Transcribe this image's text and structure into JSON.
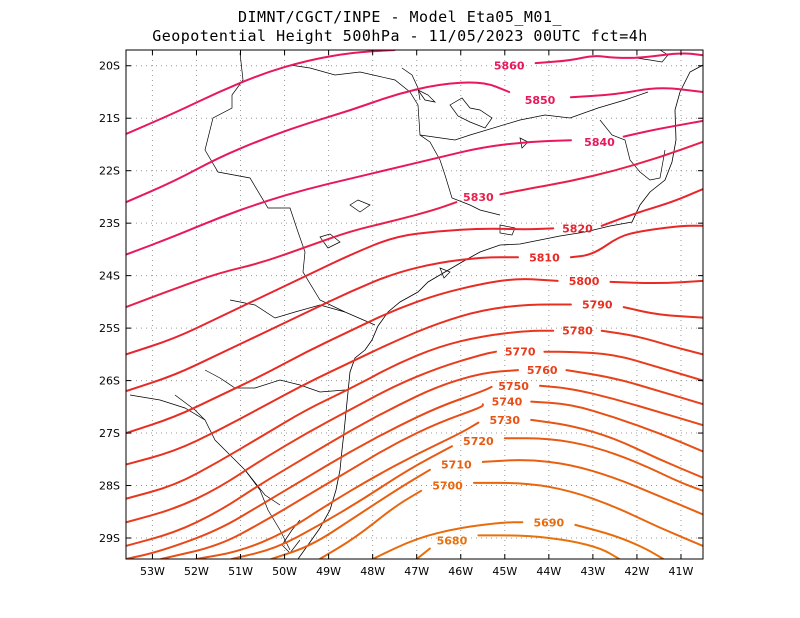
{
  "title": {
    "line1": "DIMNT/CGCT/INPE -  Model Eta05_M01_",
    "line2": "Geopotential Height 500hPa -  11/05/2023 00UTC fct=4h"
  },
  "map": {
    "lon_range": [
      -53.6,
      -40.5
    ],
    "lat_range": [
      -29.4,
      -19.7
    ],
    "x_tick_labels": [
      {
        "lon": -53,
        "label": "53W"
      },
      {
        "lon": -52,
        "label": "52W"
      },
      {
        "lon": -51,
        "label": "51W"
      },
      {
        "lon": -50,
        "label": "50W"
      },
      {
        "lon": -49,
        "label": "49W"
      },
      {
        "lon": -48,
        "label": "48W"
      },
      {
        "lon": -47,
        "label": "47W"
      },
      {
        "lon": -46,
        "label": "46W"
      },
      {
        "lon": -45,
        "label": "45W"
      },
      {
        "lon": -44,
        "label": "44W"
      },
      {
        "lon": -43,
        "label": "43W"
      },
      {
        "lon": -42,
        "label": "42W"
      },
      {
        "lon": -41,
        "label": "41W"
      }
    ],
    "y_tick_labels": [
      {
        "lat": -20,
        "label": "20S"
      },
      {
        "lat": -21,
        "label": "21S"
      },
      {
        "lat": -22,
        "label": "22S"
      },
      {
        "lat": -23,
        "label": "23S"
      },
      {
        "lat": -24,
        "label": "24S"
      },
      {
        "lat": -25,
        "label": "25S"
      },
      {
        "lat": -26,
        "label": "26S"
      },
      {
        "lat": -27,
        "label": "27S"
      },
      {
        "lat": -28,
        "label": "28S"
      },
      {
        "lat": -29,
        "label": "29S"
      }
    ],
    "grid": "dotted"
  },
  "contours": [
    {
      "value": 5860,
      "label": "5860",
      "color": "#e8185a",
      "label_lon": -44.9,
      "label_lat": -20.0,
      "path": [
        [
          -53.6,
          -21.3
        ],
        [
          -52.5,
          -20.9
        ],
        [
          -51.5,
          -20.5
        ],
        [
          -50.5,
          -20.15
        ],
        [
          -49.5,
          -19.9
        ],
        [
          -48.5,
          -19.75
        ],
        [
          -47.5,
          -19.7
        ]
      ],
      "path2": [
        [
          -44.3,
          -19.95
        ],
        [
          -43.5,
          -19.9
        ],
        [
          -43.0,
          -19.8
        ],
        [
          -42.5,
          -19.85
        ],
        [
          -41.9,
          -19.85
        ],
        [
          -41.0,
          -19.75
        ],
        [
          -40.5,
          -19.8
        ]
      ]
    },
    {
      "value": 5850,
      "label": "5850",
      "color": "#e8185a",
      "label_lon": -44.2,
      "label_lat": -20.65,
      "path": [
        [
          -53.6,
          -22.6
        ],
        [
          -52.5,
          -22.2
        ],
        [
          -51.5,
          -21.75
        ],
        [
          -50.5,
          -21.4
        ],
        [
          -49.5,
          -21.1
        ],
        [
          -48.5,
          -20.85
        ],
        [
          -47.5,
          -20.55
        ],
        [
          -46.5,
          -20.35
        ],
        [
          -45.5,
          -20.3
        ],
        [
          -44.9,
          -20.5
        ]
      ],
      "path2": [
        [
          -43.5,
          -20.6
        ],
        [
          -42.5,
          -20.55
        ],
        [
          -41.5,
          -20.4
        ],
        [
          -40.5,
          -20.5
        ]
      ]
    },
    {
      "value": 5840,
      "label": "5840",
      "color": "#e8185a",
      "label_lon": -42.85,
      "label_lat": -21.45,
      "path": [
        [
          -53.6,
          -23.6
        ],
        [
          -52.5,
          -23.25
        ],
        [
          -51.5,
          -22.9
        ],
        [
          -50.5,
          -22.6
        ],
        [
          -49.5,
          -22.35
        ],
        [
          -48.5,
          -22.15
        ],
        [
          -47.5,
          -21.95
        ],
        [
          -46.5,
          -21.75
        ],
        [
          -45.5,
          -21.55
        ],
        [
          -44.5,
          -21.45
        ],
        [
          -43.5,
          -21.42
        ]
      ],
      "path2": [
        [
          -42.3,
          -21.35
        ],
        [
          -41.5,
          -21.2
        ],
        [
          -40.5,
          -21.05
        ]
      ]
    },
    {
      "value": 5830,
      "label": "5830",
      "color": "#e81f4a",
      "label_lon": -45.6,
      "label_lat": -22.5,
      "path": [
        [
          -53.6,
          -24.6
        ],
        [
          -52.5,
          -24.25
        ],
        [
          -51.5,
          -23.95
        ],
        [
          -50.5,
          -23.75
        ],
        [
          -49.5,
          -23.45
        ],
        [
          -48.5,
          -23.15
        ],
        [
          -47.5,
          -22.95
        ],
        [
          -46.6,
          -22.75
        ],
        [
          -46.1,
          -22.6
        ]
      ],
      "path2": [
        [
          -45.1,
          -22.45
        ],
        [
          -44.5,
          -22.35
        ],
        [
          -43.5,
          -22.2
        ],
        [
          -42.5,
          -22.0
        ],
        [
          -41.5,
          -21.75
        ],
        [
          -40.5,
          -21.45
        ]
      ]
    },
    {
      "value": 5820,
      "label": "5820",
      "color": "#e8242f",
      "label_lon": -43.35,
      "label_lat": -23.1,
      "path": [
        [
          -53.6,
          -25.5
        ],
        [
          -52.5,
          -25.2
        ],
        [
          -51.5,
          -24.8
        ],
        [
          -50.5,
          -24.4
        ],
        [
          -49.5,
          -24.0
        ],
        [
          -48.5,
          -23.6
        ],
        [
          -47.5,
          -23.25
        ],
        [
          -46.5,
          -23.15
        ],
        [
          -45.5,
          -23.1
        ],
        [
          -44.5,
          -23.12
        ],
        [
          -43.9,
          -23.1
        ]
      ],
      "path2": [
        [
          -42.8,
          -23.05
        ],
        [
          -42.0,
          -22.8
        ],
        [
          -41.2,
          -22.6
        ],
        [
          -40.5,
          -22.35
        ]
      ]
    },
    {
      "value": 5810,
      "label": "5810",
      "color": "#e82828",
      "label_lon": -44.1,
      "label_lat": -23.65,
      "path": [
        [
          -53.6,
          -26.2
        ],
        [
          -52.5,
          -25.9
        ],
        [
          -51.5,
          -25.5
        ],
        [
          -50.5,
          -25.1
        ],
        [
          -49.5,
          -24.7
        ],
        [
          -48.5,
          -24.3
        ],
        [
          -47.5,
          -23.95
        ],
        [
          -46.5,
          -23.75
        ],
        [
          -45.5,
          -23.65
        ],
        [
          -44.7,
          -23.65
        ]
      ],
      "path2": [
        [
          -43.5,
          -23.65
        ],
        [
          -43.0,
          -23.6
        ],
        [
          -42.4,
          -23.25
        ],
        [
          -41.9,
          -23.15
        ],
        [
          -41.0,
          -23.05
        ],
        [
          -40.5,
          -23.05
        ]
      ]
    },
    {
      "value": 5800,
      "label": "5800",
      "color": "#e82c22",
      "label_lon": -43.2,
      "label_lat": -24.1,
      "path": [
        [
          -53.6,
          -27.0
        ],
        [
          -52.5,
          -26.7
        ],
        [
          -51.5,
          -26.3
        ],
        [
          -50.5,
          -25.9
        ],
        [
          -49.5,
          -25.45
        ],
        [
          -48.5,
          -25.05
        ],
        [
          -47.5,
          -24.65
        ],
        [
          -46.5,
          -24.35
        ],
        [
          -45.5,
          -24.15
        ],
        [
          -44.7,
          -24.05
        ],
        [
          -43.8,
          -24.1
        ]
      ],
      "path2": [
        [
          -42.6,
          -24.12
        ],
        [
          -41.5,
          -24.15
        ],
        [
          -40.5,
          -24.1
        ]
      ]
    },
    {
      "value": 5790,
      "label": "5790",
      "color": "#e83020",
      "label_lon": -42.9,
      "label_lat": -24.55,
      "path": [
        [
          -53.6,
          -27.6
        ],
        [
          -52.5,
          -27.35
        ],
        [
          -51.5,
          -26.95
        ],
        [
          -50.5,
          -26.5
        ],
        [
          -49.5,
          -26.05
        ],
        [
          -48.5,
          -25.65
        ],
        [
          -47.5,
          -25.25
        ],
        [
          -46.5,
          -24.9
        ],
        [
          -45.5,
          -24.65
        ],
        [
          -44.5,
          -24.55
        ],
        [
          -43.5,
          -24.55
        ]
      ],
      "path2": [
        [
          -42.3,
          -24.6
        ],
        [
          -41.5,
          -24.75
        ],
        [
          -40.5,
          -24.8
        ]
      ]
    },
    {
      "value": 5780,
      "label": "5780",
      "color": "#e8361e",
      "label_lon": -43.35,
      "label_lat": -25.05,
      "path": [
        [
          -53.6,
          -28.25
        ],
        [
          -52.5,
          -28.0
        ],
        [
          -51.5,
          -27.55
        ],
        [
          -50.5,
          -27.05
        ],
        [
          -49.5,
          -26.55
        ],
        [
          -48.5,
          -26.15
        ],
        [
          -47.5,
          -25.7
        ],
        [
          -46.5,
          -25.35
        ],
        [
          -45.5,
          -25.15
        ],
        [
          -44.5,
          -25.05
        ],
        [
          -43.9,
          -25.05
        ]
      ],
      "path2": [
        [
          -42.8,
          -25.05
        ],
        [
          -42.0,
          -25.15
        ],
        [
          -41.2,
          -25.35
        ],
        [
          -40.5,
          -25.5
        ]
      ]
    },
    {
      "value": 5770,
      "label": "5770",
      "color": "#e83c1c",
      "label_lon": -44.65,
      "label_lat": -25.45,
      "path": [
        [
          -53.6,
          -28.7
        ],
        [
          -52.5,
          -28.45
        ],
        [
          -51.5,
          -28.05
        ],
        [
          -50.5,
          -27.5
        ],
        [
          -49.5,
          -27.0
        ],
        [
          -48.5,
          -26.55
        ],
        [
          -47.5,
          -26.1
        ],
        [
          -46.5,
          -25.75
        ],
        [
          -45.5,
          -25.5
        ],
        [
          -45.2,
          -25.45
        ]
      ],
      "path2": [
        [
          -44.1,
          -25.45
        ],
        [
          -43.5,
          -25.45
        ],
        [
          -42.5,
          -25.5
        ],
        [
          -41.5,
          -25.75
        ],
        [
          -40.5,
          -26.0
        ]
      ]
    },
    {
      "value": 5760,
      "label": "5760",
      "color": "#e8421a",
      "label_lon": -44.15,
      "label_lat": -25.8,
      "path": [
        [
          -53.6,
          -29.15
        ],
        [
          -52.5,
          -28.9
        ],
        [
          -51.5,
          -28.5
        ],
        [
          -50.5,
          -27.95
        ],
        [
          -49.5,
          -27.45
        ],
        [
          -48.5,
          -26.95
        ],
        [
          -47.5,
          -26.5
        ],
        [
          -46.5,
          -26.1
        ],
        [
          -45.5,
          -25.85
        ],
        [
          -44.7,
          -25.8
        ]
      ],
      "path2": [
        [
          -43.6,
          -25.8
        ],
        [
          -42.5,
          -25.95
        ],
        [
          -41.5,
          -26.2
        ],
        [
          -40.5,
          -26.45
        ]
      ]
    },
    {
      "value": 5750,
      "label": "5750",
      "color": "#e84818",
      "label_lon": -44.8,
      "label_lat": -26.1,
      "path": [
        [
          -53.6,
          -29.4
        ],
        [
          -52.8,
          -29.25
        ],
        [
          -51.5,
          -28.85
        ],
        [
          -50.5,
          -28.35
        ],
        [
          -49.5,
          -27.85
        ],
        [
          -48.5,
          -27.35
        ],
        [
          -47.5,
          -26.9
        ],
        [
          -46.5,
          -26.5
        ],
        [
          -45.5,
          -26.2
        ],
        [
          -45.3,
          -26.12
        ]
      ],
      "path2": [
        [
          -44.2,
          -26.1
        ],
        [
          -43.5,
          -26.15
        ],
        [
          -42.5,
          -26.35
        ],
        [
          -41.5,
          -26.6
        ],
        [
          -40.5,
          -26.85
        ]
      ]
    },
    {
      "value": 5740,
      "label": "5740",
      "color": "#e84e16",
      "label_lon": -44.95,
      "label_lat": -26.4,
      "path": [
        [
          -52.8,
          -29.4
        ],
        [
          -51.5,
          -29.15
        ],
        [
          -50.5,
          -28.7
        ],
        [
          -49.5,
          -28.2
        ],
        [
          -48.5,
          -27.7
        ],
        [
          -47.5,
          -27.2
        ],
        [
          -46.5,
          -26.8
        ],
        [
          -45.5,
          -26.5
        ],
        [
          -45.5,
          -26.45
        ]
      ],
      "path2": [
        [
          -44.4,
          -26.4
        ],
        [
          -43.5,
          -26.45
        ],
        [
          -42.5,
          -26.7
        ],
        [
          -41.5,
          -27.0
        ],
        [
          -40.5,
          -27.35
        ]
      ]
    },
    {
      "value": 5730,
      "label": "5730",
      "color": "#e85414",
      "label_lon": -45.0,
      "label_lat": -26.75,
      "path": [
        [
          -52.0,
          -29.4
        ],
        [
          -51.0,
          -29.25
        ],
        [
          -50.0,
          -28.9
        ],
        [
          -49.0,
          -28.35
        ],
        [
          -48.0,
          -27.85
        ],
        [
          -47.0,
          -27.4
        ],
        [
          -46.0,
          -27.0
        ],
        [
          -45.6,
          -26.8
        ]
      ],
      "path2": [
        [
          -44.4,
          -26.75
        ],
        [
          -43.5,
          -26.85
        ],
        [
          -42.5,
          -27.1
        ],
        [
          -41.5,
          -27.5
        ],
        [
          -40.5,
          -27.85
        ]
      ]
    },
    {
      "value": 5720,
      "label": "5720",
      "color": "#e85a12",
      "label_lon": -45.6,
      "label_lat": -27.15,
      "path": [
        [
          -51.2,
          -29.4
        ],
        [
          -50.2,
          -29.2
        ],
        [
          -49.2,
          -28.75
        ],
        [
          -48.2,
          -28.25
        ],
        [
          -47.2,
          -27.7
        ],
        [
          -46.2,
          -27.25
        ]
      ],
      "path2": [
        [
          -45.0,
          -27.1
        ],
        [
          -44.0,
          -27.1
        ],
        [
          -43.0,
          -27.25
        ],
        [
          -42.0,
          -27.55
        ],
        [
          -41.0,
          -27.95
        ],
        [
          -40.5,
          -28.1
        ]
      ]
    },
    {
      "value": 5710,
      "label": "5710",
      "color": "#e86010",
      "label_lon": -46.1,
      "label_lat": -27.6,
      "path": [
        [
          -50.3,
          -29.4
        ],
        [
          -49.4,
          -29.15
        ],
        [
          -48.4,
          -28.6
        ],
        [
          -47.4,
          -28.05
        ],
        [
          -46.7,
          -27.7
        ]
      ],
      "path2": [
        [
          -45.5,
          -27.55
        ],
        [
          -44.5,
          -27.5
        ],
        [
          -43.5,
          -27.6
        ],
        [
          -42.5,
          -27.85
        ],
        [
          -41.5,
          -28.2
        ],
        [
          -40.5,
          -28.55
        ]
      ]
    },
    {
      "value": 5700,
      "label": "5700",
      "color": "#e8660e",
      "label_lon": -46.3,
      "label_lat": -28.0,
      "path": [
        [
          -49.2,
          -29.4
        ],
        [
          -48.4,
          -29.0
        ],
        [
          -47.5,
          -28.4
        ],
        [
          -46.9,
          -28.1
        ]
      ],
      "path2": [
        [
          -45.7,
          -27.95
        ],
        [
          -44.5,
          -27.95
        ],
        [
          -43.5,
          -28.1
        ],
        [
          -42.5,
          -28.4
        ],
        [
          -41.5,
          -28.8
        ],
        [
          -40.5,
          -29.15
        ]
      ]
    },
    {
      "value": 5690,
      "label": "5690",
      "color": "#e86c0c",
      "label_lon": -44.0,
      "label_lat": -28.7,
      "path": [
        [
          -48.0,
          -29.4
        ],
        [
          -47.0,
          -29.0
        ],
        [
          -46.0,
          -28.8
        ],
        [
          -45.0,
          -28.7
        ],
        [
          -44.6,
          -28.7
        ]
      ],
      "path2": [
        [
          -43.4,
          -28.75
        ],
        [
          -42.5,
          -28.95
        ],
        [
          -41.8,
          -29.2
        ],
        [
          -41.4,
          -29.4
        ]
      ]
    },
    {
      "value": 5680,
      "label": "5680",
      "color": "#e8720a",
      "label_lon": -46.2,
      "label_lat": -29.05,
      "path": [
        [
          -47.0,
          -29.4
        ],
        [
          -46.7,
          -29.2
        ]
      ],
      "path2": [
        [
          -45.6,
          -28.95
        ],
        [
          -44.5,
          -28.95
        ],
        [
          -43.5,
          -29.05
        ],
        [
          -42.8,
          -29.2
        ],
        [
          -42.4,
          -29.4
        ]
      ]
    }
  ],
  "colors": {
    "coastline": "#000000",
    "grid": "#9a9a9a",
    "frame": "#000000"
  }
}
